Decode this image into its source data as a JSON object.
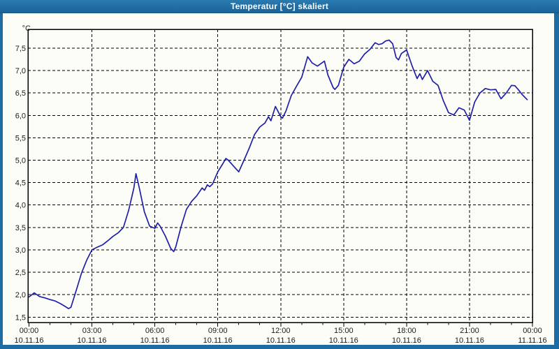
{
  "window": {
    "title": "Temperatur [°C] skaliert"
  },
  "colors": {
    "titlebar": "#1d6da4",
    "window_border": "#1d6da4",
    "plot_background": "#fdfdf8",
    "grid": "#000000",
    "axis_text": "#1a1a1a",
    "line": "#1f1fa8"
  },
  "chart_data": {
    "type": "line",
    "title": "Temperatur [°C] skaliert",
    "xlabel": "",
    "ylabel": "°C",
    "ylim": [
      1.38,
      7.92
    ],
    "grid": "dashed",
    "legend_position": "none",
    "y_ticks": [
      {
        "value": 7.5,
        "label": "7,5"
      },
      {
        "value": 7.0,
        "label": "7,0"
      },
      {
        "value": 6.5,
        "label": "6,5"
      },
      {
        "value": 6.0,
        "label": "6,0"
      },
      {
        "value": 5.5,
        "label": "5,5"
      },
      {
        "value": 5.0,
        "label": "5,0"
      },
      {
        "value": 4.5,
        "label": "4,5"
      },
      {
        "value": 4.0,
        "label": "4,0"
      },
      {
        "value": 3.5,
        "label": "3,5"
      },
      {
        "value": 3.0,
        "label": "3,0"
      },
      {
        "value": 2.5,
        "label": "2,5"
      },
      {
        "value": 2.0,
        "label": "2,0"
      },
      {
        "value": 1.5,
        "label": "1,5"
      }
    ],
    "x_ticks": [
      {
        "hour": 0,
        "time": "00:00",
        "date": "10.11.16"
      },
      {
        "hour": 3,
        "time": "03:00",
        "date": "10.11.16"
      },
      {
        "hour": 6,
        "time": "06:00",
        "date": "10.11.16"
      },
      {
        "hour": 9,
        "time": "09:00",
        "date": "10.11.16"
      },
      {
        "hour": 12,
        "time": "12:00",
        "date": "10.11.16"
      },
      {
        "hour": 15,
        "time": "15:00",
        "date": "10.11.16"
      },
      {
        "hour": 18,
        "time": "18:00",
        "date": "10.11.16"
      },
      {
        "hour": 21,
        "time": "21:00",
        "date": "10.11.16"
      },
      {
        "hour": 24,
        "time": "00:00",
        "date": "11.11.16"
      }
    ],
    "minor_tick_every_hours": 1,
    "series": [
      {
        "name": "Temperatur",
        "unit": "°C",
        "points": [
          [
            "00:00",
            1.95
          ],
          [
            "00:15",
            2.04
          ],
          [
            "00:30",
            1.96
          ],
          [
            "00:45",
            1.93
          ],
          [
            "01:00",
            1.89
          ],
          [
            "01:15",
            1.86
          ],
          [
            "01:30",
            1.8
          ],
          [
            "01:45",
            1.73
          ],
          [
            "01:53",
            1.69
          ],
          [
            "02:00",
            1.72
          ],
          [
            "02:15",
            2.09
          ],
          [
            "02:30",
            2.48
          ],
          [
            "02:45",
            2.77
          ],
          [
            "03:00",
            3.0
          ],
          [
            "03:15",
            3.06
          ],
          [
            "03:30",
            3.11
          ],
          [
            "03:45",
            3.2
          ],
          [
            "04:00",
            3.3
          ],
          [
            "04:15",
            3.38
          ],
          [
            "04:30",
            3.5
          ],
          [
            "04:45",
            3.88
          ],
          [
            "05:00",
            4.38
          ],
          [
            "05:06",
            4.7
          ],
          [
            "05:15",
            4.4
          ],
          [
            "05:30",
            3.85
          ],
          [
            "05:45",
            3.53
          ],
          [
            "06:00",
            3.48
          ],
          [
            "06:08",
            3.6
          ],
          [
            "06:15",
            3.53
          ],
          [
            "06:30",
            3.31
          ],
          [
            "06:45",
            3.04
          ],
          [
            "06:54",
            2.96
          ],
          [
            "07:00",
            3.07
          ],
          [
            "07:15",
            3.52
          ],
          [
            "07:30",
            3.9
          ],
          [
            "07:45",
            4.08
          ],
          [
            "08:00",
            4.21
          ],
          [
            "08:15",
            4.38
          ],
          [
            "08:22",
            4.33
          ],
          [
            "08:30",
            4.45
          ],
          [
            "08:37",
            4.41
          ],
          [
            "08:45",
            4.47
          ],
          [
            "09:00",
            4.74
          ],
          [
            "09:15",
            4.93
          ],
          [
            "09:23",
            5.04
          ],
          [
            "09:30",
            5.0
          ],
          [
            "09:45",
            4.87
          ],
          [
            "10:00",
            4.74
          ],
          [
            "10:15",
            5.0
          ],
          [
            "10:30",
            5.27
          ],
          [
            "10:45",
            5.57
          ],
          [
            "11:00",
            5.74
          ],
          [
            "11:15",
            5.83
          ],
          [
            "11:25",
            5.97
          ],
          [
            "11:32",
            5.88
          ],
          [
            "11:45",
            6.2
          ],
          [
            "12:00",
            5.97
          ],
          [
            "12:05",
            5.94
          ],
          [
            "12:15",
            6.1
          ],
          [
            "12:30",
            6.44
          ],
          [
            "12:45",
            6.65
          ],
          [
            "13:00",
            6.85
          ],
          [
            "13:17",
            7.31
          ],
          [
            "13:30",
            7.17
          ],
          [
            "13:45",
            7.1
          ],
          [
            "14:05",
            7.21
          ],
          [
            "14:15",
            6.9
          ],
          [
            "14:30",
            6.62
          ],
          [
            "14:35",
            6.58
          ],
          [
            "14:45",
            6.67
          ],
          [
            "15:00",
            7.07
          ],
          [
            "15:15",
            7.25
          ],
          [
            "15:30",
            7.15
          ],
          [
            "15:45",
            7.21
          ],
          [
            "16:00",
            7.37
          ],
          [
            "16:15",
            7.47
          ],
          [
            "16:30",
            7.62
          ],
          [
            "16:40",
            7.58
          ],
          [
            "16:50",
            7.6
          ],
          [
            "17:00",
            7.66
          ],
          [
            "17:10",
            7.68
          ],
          [
            "17:20",
            7.6
          ],
          [
            "17:30",
            7.29
          ],
          [
            "17:37",
            7.24
          ],
          [
            "17:45",
            7.38
          ],
          [
            "18:00",
            7.46
          ],
          [
            "18:15",
            7.12
          ],
          [
            "18:30",
            6.82
          ],
          [
            "18:38",
            6.93
          ],
          [
            "18:45",
            6.8
          ],
          [
            "19:00",
            7.0
          ],
          [
            "19:15",
            6.76
          ],
          [
            "19:30",
            6.67
          ],
          [
            "19:45",
            6.33
          ],
          [
            "20:00",
            6.06
          ],
          [
            "20:15",
            6.01
          ],
          [
            "20:30",
            6.17
          ],
          [
            "20:45",
            6.12
          ],
          [
            "21:00",
            5.89
          ],
          [
            "21:15",
            6.3
          ],
          [
            "21:30",
            6.5
          ],
          [
            "21:45",
            6.6
          ],
          [
            "22:00",
            6.57
          ],
          [
            "22:15",
            6.58
          ],
          [
            "22:30",
            6.37
          ],
          [
            "22:45",
            6.5
          ],
          [
            "23:00",
            6.67
          ],
          [
            "23:10",
            6.66
          ],
          [
            "23:20",
            6.57
          ],
          [
            "23:30",
            6.47
          ],
          [
            "23:45",
            6.35
          ]
        ]
      }
    ]
  }
}
